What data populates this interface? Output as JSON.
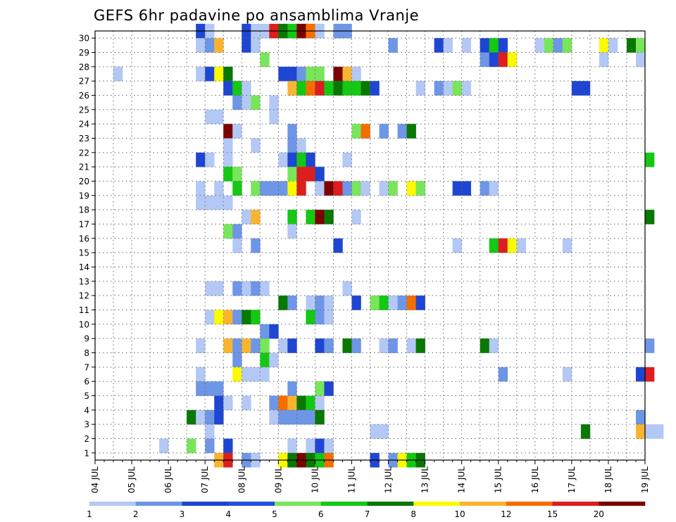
{
  "chart_data": {
    "type": "heatmap",
    "title": "GEFS 6hr padavine po ansamblima Vranje",
    "xlabel": "",
    "ylabel": "",
    "members": [
      1,
      2,
      3,
      4,
      5,
      6,
      7,
      8,
      9,
      10,
      11,
      12,
      13,
      14,
      15,
      16,
      17,
      18,
      19,
      20,
      21,
      22,
      23,
      24,
      25,
      26,
      27,
      28,
      29,
      30
    ],
    "x_ticks": [
      "04 JUL",
      "05 JUL",
      "06 JUL",
      "07 JUL",
      "08 JUL",
      "09 JUL",
      "10 JUL",
      "11 JUL",
      "12 JUL",
      "13 JUL",
      "14 JUL",
      "15 JUL",
      "16 JUL",
      "17 JUL",
      "18 JUL",
      "19 JUL"
    ],
    "steps_per_day": 4,
    "grid": true,
    "legend": {
      "position": "bottom",
      "labels": [
        "1",
        "2",
        "3",
        "4",
        "5",
        "6",
        "7",
        "8",
        "10",
        "12",
        "15",
        "20"
      ],
      "colors": [
        "#b4c8f5",
        "#6e96e6",
        "#1e46d2",
        "#2450e0",
        "#78e65a",
        "#14c814",
        "#087800",
        "#fafa00",
        "#fab432",
        "#f56e00",
        "#dc1e1e",
        "#7d0000"
      ]
    },
    "class_colors": [
      "#b4c8f5",
      "#6e96e6",
      "#1e46d2",
      "#78e65a",
      "#14c814",
      "#087800",
      "#fafa00",
      "#fab432",
      "#f56e00",
      "#dc1e1e",
      "#7d0000"
    ],
    "cells": [
      [
        30,
        "06 JUL",
        3,
        3
      ],
      [
        30,
        "07 JUL",
        0,
        1
      ],
      [
        30,
        "08 JUL",
        0,
        3
      ],
      [
        30,
        "08 JUL",
        1,
        1
      ],
      [
        30,
        "08 JUL",
        2,
        1
      ],
      [
        30,
        "08 JUL",
        3,
        10
      ],
      [
        30,
        "09 JUL",
        0,
        6
      ],
      [
        30,
        "09 JUL",
        1,
        5
      ],
      [
        30,
        "09 JUL",
        2,
        11
      ],
      [
        30,
        "09 JUL",
        3,
        9
      ],
      [
        30,
        "10 JUL",
        0,
        1
      ],
      [
        30,
        "10 JUL",
        2,
        2
      ],
      [
        30,
        "10 JUL",
        3,
        2
      ],
      [
        29,
        "06 JUL",
        3,
        1
      ],
      [
        29,
        "07 JUL",
        0,
        2
      ],
      [
        29,
        "07 JUL",
        1,
        8
      ],
      [
        29,
        "08 JUL",
        0,
        3
      ],
      [
        29,
        "08 JUL",
        1,
        1
      ],
      [
        29,
        "12 JUL",
        0,
        2
      ],
      [
        29,
        "13 JUL",
        1,
        3
      ],
      [
        29,
        "13 JUL",
        2,
        1
      ],
      [
        29,
        "14 JUL",
        0,
        1
      ],
      [
        29,
        "14 JUL",
        2,
        3
      ],
      [
        29,
        "14 JUL",
        3,
        5
      ],
      [
        29,
        "15 JUL",
        0,
        3
      ],
      [
        29,
        "16 JUL",
        0,
        1
      ],
      [
        29,
        "16 JUL",
        1,
        4
      ],
      [
        29,
        "16 JUL",
        2,
        2
      ],
      [
        29,
        "16 JUL",
        3,
        4
      ],
      [
        29,
        "17 JUL",
        3,
        7
      ],
      [
        29,
        "18 JUL",
        0,
        1
      ],
      [
        29,
        "18 JUL",
        2,
        6
      ],
      [
        29,
        "18 JUL",
        3,
        4
      ],
      [
        28,
        "08 JUL",
        2,
        4
      ],
      [
        28,
        "14 JUL",
        2,
        2
      ],
      [
        28,
        "14 JUL",
        3,
        3
      ],
      [
        28,
        "15 JUL",
        0,
        10
      ],
      [
        28,
        "15 JUL",
        1,
        7
      ],
      [
        28,
        "17 JUL",
        3,
        1
      ],
      [
        28,
        "18 JUL",
        3,
        1
      ],
      [
        27,
        "04 JUL",
        2,
        1
      ],
      [
        27,
        "06 JUL",
        3,
        1
      ],
      [
        27,
        "07 JUL",
        0,
        3
      ],
      [
        27,
        "07 JUL",
        1,
        7
      ],
      [
        27,
        "07 JUL",
        2,
        6
      ],
      [
        27,
        "09 JUL",
        0,
        3
      ],
      [
        27,
        "09 JUL",
        1,
        3
      ],
      [
        27,
        "09 JUL",
        2,
        2
      ],
      [
        27,
        "09 JUL",
        3,
        4
      ],
      [
        27,
        "10 JUL",
        0,
        4
      ],
      [
        27,
        "10 JUL",
        2,
        11
      ],
      [
        27,
        "10 JUL",
        3,
        8
      ],
      [
        27,
        "11 JUL",
        0,
        1
      ],
      [
        26,
        "07 JUL",
        2,
        3
      ],
      [
        26,
        "07 JUL",
        3,
        5
      ],
      [
        26,
        "08 JUL",
        0,
        1
      ],
      [
        26,
        "09 JUL",
        1,
        8
      ],
      [
        26,
        "09 JUL",
        2,
        5
      ],
      [
        26,
        "09 JUL",
        3,
        9
      ],
      [
        26,
        "10 JUL",
        0,
        10
      ],
      [
        26,
        "10 JUL",
        1,
        5
      ],
      [
        26,
        "10 JUL",
        2,
        6
      ],
      [
        26,
        "10 JUL",
        3,
        5
      ],
      [
        26,
        "11 JUL",
        0,
        5
      ],
      [
        26,
        "11 JUL",
        1,
        6
      ],
      [
        26,
        "11 JUL",
        2,
        3
      ],
      [
        26,
        "12 JUL",
        3,
        1
      ],
      [
        26,
        "13 JUL",
        1,
        2
      ],
      [
        26,
        "13 JUL",
        2,
        1
      ],
      [
        26,
        "13 JUL",
        3,
        4
      ],
      [
        26,
        "14 JUL",
        0,
        1
      ],
      [
        26,
        "17 JUL",
        0,
        3
      ],
      [
        26,
        "17 JUL",
        1,
        3
      ],
      [
        25,
        "07 JUL",
        3,
        2
      ],
      [
        25,
        "08 JUL",
        0,
        1
      ],
      [
        25,
        "08 JUL",
        1,
        4
      ],
      [
        25,
        "08 JUL",
        3,
        1
      ],
      [
        24,
        "07 JUL",
        0,
        1
      ],
      [
        24,
        "07 JUL",
        1,
        1
      ],
      [
        24,
        "08 JUL",
        3,
        1
      ],
      [
        23,
        "07 JUL",
        2,
        11
      ],
      [
        23,
        "07 JUL",
        3,
        1
      ],
      [
        23,
        "09 JUL",
        1,
        2
      ],
      [
        23,
        "11 JUL",
        0,
        4
      ],
      [
        23,
        "11 JUL",
        1,
        9
      ],
      [
        23,
        "11 JUL",
        3,
        2
      ],
      [
        23,
        "12 JUL",
        1,
        2
      ],
      [
        23,
        "12 JUL",
        2,
        6
      ],
      [
        22,
        "07 JUL",
        2,
        1
      ],
      [
        22,
        "08 JUL",
        1,
        1
      ],
      [
        22,
        "09 JUL",
        1,
        2
      ],
      [
        22,
        "09 JUL",
        2,
        1
      ],
      [
        21,
        "06 JUL",
        3,
        3
      ],
      [
        21,
        "07 JUL",
        0,
        1
      ],
      [
        21,
        "07 JUL",
        2,
        1
      ],
      [
        21,
        "09 JUL",
        0,
        1
      ],
      [
        21,
        "09 JUL",
        1,
        3
      ],
      [
        21,
        "09 JUL",
        2,
        5
      ],
      [
        21,
        "09 JUL",
        3,
        3
      ],
      [
        21,
        "10 JUL",
        3,
        1
      ],
      [
        21,
        "19 JUL",
        0,
        5
      ],
      [
        20,
        "07 JUL",
        2,
        5
      ],
      [
        20,
        "07 JUL",
        3,
        4
      ],
      [
        20,
        "09 JUL",
        1,
        4
      ],
      [
        20,
        "09 JUL",
        2,
        10
      ],
      [
        20,
        "09 JUL",
        3,
        10
      ],
      [
        20,
        "10 JUL",
        0,
        3
      ],
      [
        19,
        "06 JUL",
        3,
        1
      ],
      [
        19,
        "07 JUL",
        1,
        1
      ],
      [
        19,
        "07 JUL",
        3,
        5
      ],
      [
        19,
        "08 JUL",
        1,
        4
      ],
      [
        19,
        "08 JUL",
        2,
        2
      ],
      [
        19,
        "08 JUL",
        3,
        2
      ],
      [
        19,
        "09 JUL",
        0,
        2
      ],
      [
        19,
        "09 JUL",
        1,
        7
      ],
      [
        19,
        "09 JUL",
        2,
        10
      ],
      [
        19,
        "10 JUL",
        0,
        1
      ],
      [
        19,
        "10 JUL",
        1,
        11
      ],
      [
        19,
        "10 JUL",
        2,
        10
      ],
      [
        19,
        "10 JUL",
        3,
        2
      ],
      [
        19,
        "11 JUL",
        0,
        4
      ],
      [
        19,
        "11 JUL",
        1,
        1
      ],
      [
        19,
        "11 JUL",
        3,
        1
      ],
      [
        19,
        "12 JUL",
        0,
        4
      ],
      [
        19,
        "12 JUL",
        2,
        7
      ],
      [
        19,
        "12 JUL",
        3,
        4
      ],
      [
        19,
        "13 JUL",
        3,
        3
      ],
      [
        19,
        "14 JUL",
        0,
        3
      ],
      [
        19,
        "14 JUL",
        2,
        2
      ],
      [
        19,
        "14 JUL",
        3,
        1
      ],
      [
        18,
        "06 JUL",
        3,
        1
      ],
      [
        18,
        "07 JUL",
        0,
        1
      ],
      [
        18,
        "07 JUL",
        1,
        1
      ],
      [
        18,
        "07 JUL",
        2,
        1
      ],
      [
        17,
        "08 JUL",
        0,
        1
      ],
      [
        17,
        "08 JUL",
        1,
        8
      ],
      [
        17,
        "09 JUL",
        1,
        5
      ],
      [
        17,
        "09 JUL",
        3,
        5
      ],
      [
        17,
        "10 JUL",
        0,
        11
      ],
      [
        17,
        "10 JUL",
        1,
        6
      ],
      [
        17,
        "11 JUL",
        0,
        1
      ],
      [
        17,
        "19 JUL",
        0,
        6
      ],
      [
        16,
        "07 JUL",
        2,
        4
      ],
      [
        16,
        "07 JUL",
        3,
        2
      ],
      [
        16,
        "09 JUL",
        1,
        1
      ],
      [
        15,
        "07 JUL",
        3,
        1
      ],
      [
        15,
        "08 JUL",
        1,
        2
      ],
      [
        15,
        "10 JUL",
        2,
        3
      ],
      [
        15,
        "13 JUL",
        3,
        1
      ],
      [
        15,
        "14 JUL",
        3,
        5
      ],
      [
        15,
        "15 JUL",
        0,
        10
      ],
      [
        15,
        "15 JUL",
        1,
        7
      ],
      [
        15,
        "15 JUL",
        2,
        1
      ],
      [
        15,
        "16 JUL",
        3,
        1
      ],
      [
        12,
        "07 JUL",
        0,
        1
      ],
      [
        12,
        "07 JUL",
        1,
        1
      ],
      [
        12,
        "07 JUL",
        3,
        2
      ],
      [
        12,
        "08 JUL",
        0,
        1
      ],
      [
        12,
        "08 JUL",
        1,
        2
      ],
      [
        12,
        "08 JUL",
        2,
        1
      ],
      [
        12,
        "10 JUL",
        3,
        1
      ],
      [
        11,
        "09 JUL",
        0,
        6
      ],
      [
        11,
        "09 JUL",
        1,
        2
      ],
      [
        11,
        "09 JUL",
        3,
        1
      ],
      [
        11,
        "10 JUL",
        0,
        2
      ],
      [
        11,
        "10 JUL",
        1,
        1
      ],
      [
        11,
        "11 JUL",
        0,
        3
      ],
      [
        11,
        "11 JUL",
        2,
        4
      ],
      [
        11,
        "11 JUL",
        3,
        5
      ],
      [
        11,
        "12 JUL",
        0,
        1
      ],
      [
        11,
        "12 JUL",
        1,
        2
      ],
      [
        11,
        "12 JUL",
        2,
        9
      ],
      [
        11,
        "12 JUL",
        3,
        3
      ],
      [
        10,
        "07 JUL",
        0,
        1
      ],
      [
        10,
        "07 JUL",
        1,
        7
      ],
      [
        10,
        "07 JUL",
        2,
        8
      ],
      [
        10,
        "07 JUL",
        3,
        2
      ],
      [
        10,
        "08 JUL",
        0,
        6
      ],
      [
        10,
        "08 JUL",
        1,
        5
      ],
      [
        10,
        "09 JUL",
        3,
        5
      ],
      [
        10,
        "10 JUL",
        0,
        2
      ],
      [
        10,
        "10 JUL",
        1,
        1
      ],
      [
        9,
        "08 JUL",
        2,
        2
      ],
      [
        9,
        "08 JUL",
        3,
        3
      ],
      [
        8,
        "06 JUL",
        3,
        1
      ],
      [
        8,
        "07 JUL",
        2,
        8
      ],
      [
        8,
        "07 JUL",
        3,
        2
      ],
      [
        8,
        "08 JUL",
        0,
        8
      ],
      [
        8,
        "08 JUL",
        1,
        2
      ],
      [
        8,
        "08 JUL",
        2,
        4
      ],
      [
        8,
        "09 JUL",
        0,
        1
      ],
      [
        8,
        "09 JUL",
        1,
        3
      ],
      [
        8,
        "10 JUL",
        0,
        3
      ],
      [
        8,
        "10 JUL",
        1,
        2
      ],
      [
        8,
        "10 JUL",
        3,
        6
      ],
      [
        8,
        "11 JUL",
        0,
        2
      ],
      [
        8,
        "11 JUL",
        3,
        1
      ],
      [
        8,
        "12 JUL",
        0,
        2
      ],
      [
        8,
        "12 JUL",
        2,
        1
      ],
      [
        8,
        "12 JUL",
        3,
        6
      ],
      [
        8,
        "14 JUL",
        2,
        6
      ],
      [
        8,
        "14 JUL",
        3,
        1
      ],
      [
        8,
        "19 JUL",
        0,
        2
      ],
      [
        7,
        "07 JUL",
        3,
        2
      ],
      [
        7,
        "08 JUL",
        2,
        5
      ],
      [
        7,
        "08 JUL",
        3,
        1
      ],
      [
        6,
        "06 JUL",
        3,
        1
      ],
      [
        6,
        "07 JUL",
        3,
        7
      ],
      [
        6,
        "08 JUL",
        0,
        1
      ],
      [
        6,
        "08 JUL",
        1,
        1
      ],
      [
        6,
        "08 JUL",
        2,
        1
      ],
      [
        6,
        "15 JUL",
        0,
        2
      ],
      [
        6,
        "16 JUL",
        3,
        1
      ],
      [
        6,
        "18 JUL",
        3,
        3
      ],
      [
        6,
        "19 JUL",
        0,
        10
      ],
      [
        5,
        "06 JUL",
        3,
        2
      ],
      [
        5,
        "07 JUL",
        0,
        2
      ],
      [
        5,
        "07 JUL",
        1,
        2
      ],
      [
        5,
        "09 JUL",
        1,
        2
      ],
      [
        5,
        "10 JUL",
        0,
        4
      ],
      [
        5,
        "10 JUL",
        1,
        3
      ],
      [
        4,
        "07 JUL",
        1,
        3
      ],
      [
        4,
        "07 JUL",
        2,
        1
      ],
      [
        4,
        "08 JUL",
        0,
        1
      ],
      [
        4,
        "08 JUL",
        3,
        2
      ],
      [
        4,
        "09 JUL",
        0,
        9
      ],
      [
        4,
        "09 JUL",
        1,
        8
      ],
      [
        4,
        "09 JUL",
        2,
        6
      ],
      [
        4,
        "09 JUL",
        3,
        5
      ],
      [
        4,
        "10 JUL",
        0,
        1
      ],
      [
        3,
        "06 JUL",
        2,
        6
      ],
      [
        3,
        "06 JUL",
        3,
        1
      ],
      [
        3,
        "07 JUL",
        0,
        2
      ],
      [
        3,
        "07 JUL",
        1,
        3
      ],
      [
        3,
        "08 JUL",
        3,
        1
      ],
      [
        3,
        "09 JUL",
        0,
        2
      ],
      [
        3,
        "09 JUL",
        1,
        2
      ],
      [
        3,
        "09 JUL",
        2,
        2
      ],
      [
        3,
        "09 JUL",
        3,
        2
      ],
      [
        3,
        "10 JUL",
        0,
        6
      ],
      [
        3,
        "18 JUL",
        3,
        2
      ],
      [
        2,
        "07 JUL",
        0,
        1
      ],
      [
        2,
        "11 JUL",
        2,
        1
      ],
      [
        2,
        "11 JUL",
        3,
        1
      ],
      [
        2,
        "17 JUL",
        1,
        6
      ],
      [
        2,
        "18 JUL",
        3,
        8
      ],
      [
        2,
        "19 JUL",
        0,
        1
      ],
      [
        2,
        "19 JUL",
        1,
        1
      ],
      [
        1,
        "05 JUL",
        3,
        1
      ],
      [
        1,
        "06 JUL",
        2,
        4
      ],
      [
        1,
        "07 JUL",
        0,
        2
      ],
      [
        1,
        "07 JUL",
        2,
        3
      ],
      [
        1,
        "09 JUL",
        1,
        1
      ],
      [
        1,
        "09 JUL",
        3,
        1
      ],
      [
        1,
        "10 JUL",
        0,
        3
      ],
      [
        1,
        "10 JUL",
        1,
        1
      ],
      [
        0,
        "07 JUL",
        1,
        8
      ],
      [
        0,
        "07 JUL",
        2,
        10
      ],
      [
        0,
        "08 JUL",
        0,
        2
      ],
      [
        0,
        "08 JUL",
        1,
        1
      ],
      [
        0,
        "09 JUL",
        0,
        7
      ],
      [
        0,
        "09 JUL",
        1,
        6
      ],
      [
        0,
        "09 JUL",
        2,
        11
      ],
      [
        0,
        "09 JUL",
        3,
        6
      ],
      [
        0,
        "10 JUL",
        0,
        5
      ],
      [
        0,
        "10 JUL",
        1,
        9
      ],
      [
        0,
        "11 JUL",
        2,
        3
      ],
      [
        0,
        "12 JUL",
        0,
        2
      ],
      [
        0,
        "12 JUL",
        1,
        7
      ],
      [
        0,
        "12 JUL",
        2,
        5
      ],
      [
        0,
        "12 JUL",
        3,
        6
      ]
    ]
  }
}
